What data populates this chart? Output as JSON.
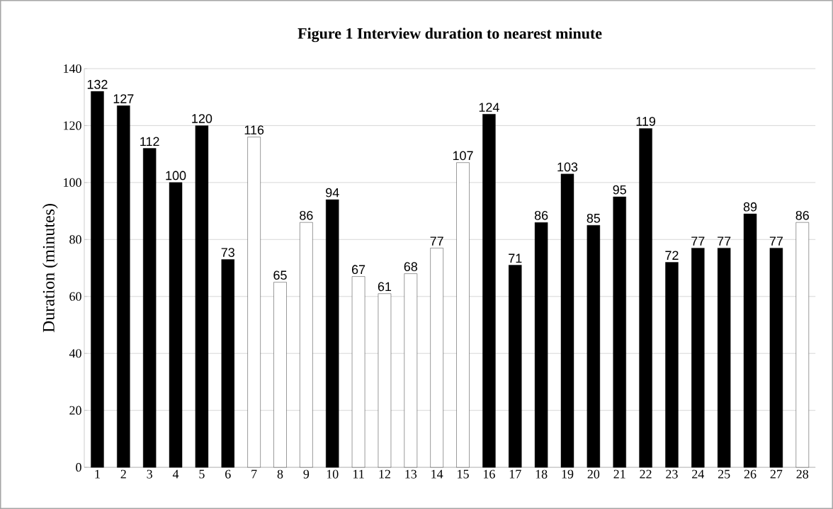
{
  "chart_data": {
    "type": "bar",
    "title": "**Figure 1          Interview duration to nearest minute**",
    "ylabel": "Duration (minutes)",
    "categories": [
      "1",
      "2",
      "3",
      "4",
      "5",
      "6",
      "7",
      "8",
      "9",
      "10",
      "11",
      "12",
      "13",
      "14",
      "15",
      "16",
      "17",
      "18",
      "19",
      "20",
      "21",
      "22",
      "23",
      "24",
      "25",
      "26",
      "27",
      "28"
    ],
    "values": [
      132,
      127,
      112,
      100,
      120,
      73,
      116,
      65,
      86,
      94,
      67,
      61,
      68,
      77,
      107,
      124,
      71,
      86,
      103,
      85,
      95,
      119,
      72,
      77,
      77,
      89,
      77,
      86
    ],
    "colors": [
      "#000000",
      "#000000",
      "#000000",
      "#000000",
      "#000000",
      "#000000",
      "#ffffff",
      "#ffffff",
      "#ffffff",
      "#000000",
      "#ffffff",
      "#ffffff",
      "#ffffff",
      "#ffffff",
      "#ffffff",
      "#000000",
      "#000000",
      "#000000",
      "#000000",
      "#000000",
      "#000000",
      "#000000",
      "#000000",
      "#000000",
      "#000000",
      "#000000",
      "#000000",
      "#ffffff"
    ],
    "ylim": [
      0,
      140
    ],
    "yticks": [
      0,
      20,
      40,
      60,
      80,
      100,
      120,
      140
    ],
    "grid": "y",
    "data_labels": true
  }
}
